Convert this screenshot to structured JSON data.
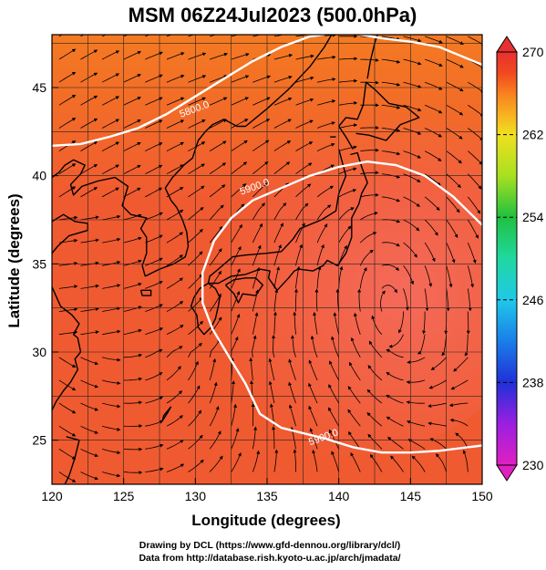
{
  "title": "MSM 06Z24Jul2023 (500.0hPa)",
  "xlabel": "Longitude (degrees)",
  "ylabel": "Latitude  (degrees)",
  "credits": [
    "Drawing by DCL (https://www.gfd-dennou.org/library/dcl/)",
    "Data from http://database.rish.kyoto-u.ac.jp/arch/jmadata/"
  ],
  "map": {
    "lon_range": [
      120,
      150
    ],
    "lat_range": [
      22.5,
      48
    ],
    "lon_ticks": [
      120,
      125,
      130,
      135,
      140,
      145,
      150
    ],
    "lat_ticks": [
      25,
      30,
      35,
      40,
      45
    ],
    "lon_tick_labels": [
      "120",
      "125",
      "130",
      "135",
      "140",
      "145",
      "150"
    ],
    "lat_tick_labels": [
      "25",
      "30",
      "35",
      "40",
      "45"
    ],
    "grid_step_deg": 2.5,
    "coastline_color": "#000000",
    "streamline_color": "#000000"
  },
  "contours": [
    {
      "label": "5800.0",
      "color": "#ffffff",
      "points": [
        [
          120,
          41.7
        ],
        [
          122,
          41.8
        ],
        [
          124,
          42.2
        ],
        [
          126,
          42.7
        ],
        [
          128,
          43.5
        ],
        [
          130,
          44.5
        ],
        [
          132,
          45.5
        ],
        [
          134,
          46.5
        ],
        [
          136,
          47.3
        ],
        [
          138,
          47.9
        ],
        [
          139,
          48
        ]
      ],
      "label_at": [
        130,
        43.6
      ]
    },
    {
      "label": "5800.0",
      "color": "#ffffff",
      "points": [
        [
          141.5,
          48
        ],
        [
          143,
          47.8
        ],
        [
          145,
          47.6
        ],
        [
          147,
          47.3
        ],
        [
          148.5,
          46.8
        ],
        [
          150,
          46.3
        ]
      ],
      "label_at": null
    },
    {
      "label": "5900.0",
      "color": "#ffffff",
      "points": [
        [
          150,
          37.2
        ],
        [
          148,
          38.8
        ],
        [
          146,
          40
        ],
        [
          144,
          40.6
        ],
        [
          142,
          40.8
        ],
        [
          140,
          40.5
        ],
        [
          138,
          40
        ],
        [
          136,
          39.3
        ],
        [
          134,
          38.6
        ],
        [
          132.5,
          37.6
        ],
        [
          131.3,
          36.3
        ],
        [
          130.5,
          34.5
        ],
        [
          130.5,
          32.8
        ],
        [
          131.2,
          31.3
        ],
        [
          132.3,
          29.8
        ],
        [
          133.5,
          28.2
        ],
        [
          134.5,
          26.5
        ],
        [
          136,
          25.7
        ],
        [
          137.5,
          25.4
        ],
        [
          139,
          25.1
        ],
        [
          141,
          24.6
        ],
        [
          143,
          24.3
        ],
        [
          145,
          24.3
        ],
        [
          147,
          24.4
        ],
        [
          149,
          24.6
        ],
        [
          150,
          24.7
        ]
      ],
      "label_at": [
        134.2,
        39.2
      ],
      "label_at2": [
        139,
        25
      ]
    }
  ],
  "colorbar": {
    "min": 230,
    "max": 270,
    "ticks": [
      230,
      238,
      246,
      254,
      262,
      270
    ],
    "tick_labels": [
      "230",
      "238",
      "246",
      "254",
      "262",
      "270"
    ],
    "stops": [
      {
        "v": 230,
        "color": "#e020c0"
      },
      {
        "v": 234,
        "color": "#9a20e0"
      },
      {
        "v": 238,
        "color": "#2030d8"
      },
      {
        "v": 242,
        "color": "#1a7ee8"
      },
      {
        "v": 246,
        "color": "#20c8e8"
      },
      {
        "v": 250,
        "color": "#20d8a0"
      },
      {
        "v": 254,
        "color": "#20c040"
      },
      {
        "v": 258,
        "color": "#a8e020"
      },
      {
        "v": 262,
        "color": "#f0e020"
      },
      {
        "v": 264,
        "color": "#f8b020"
      },
      {
        "v": 266,
        "color": "#f88020"
      },
      {
        "v": 268,
        "color": "#f04820"
      },
      {
        "v": 270,
        "color": "#e83030"
      }
    ]
  },
  "field_colors": {
    "warm_core": "#f06050",
    "mid": "#f04a28",
    "outer": "#f27020"
  }
}
